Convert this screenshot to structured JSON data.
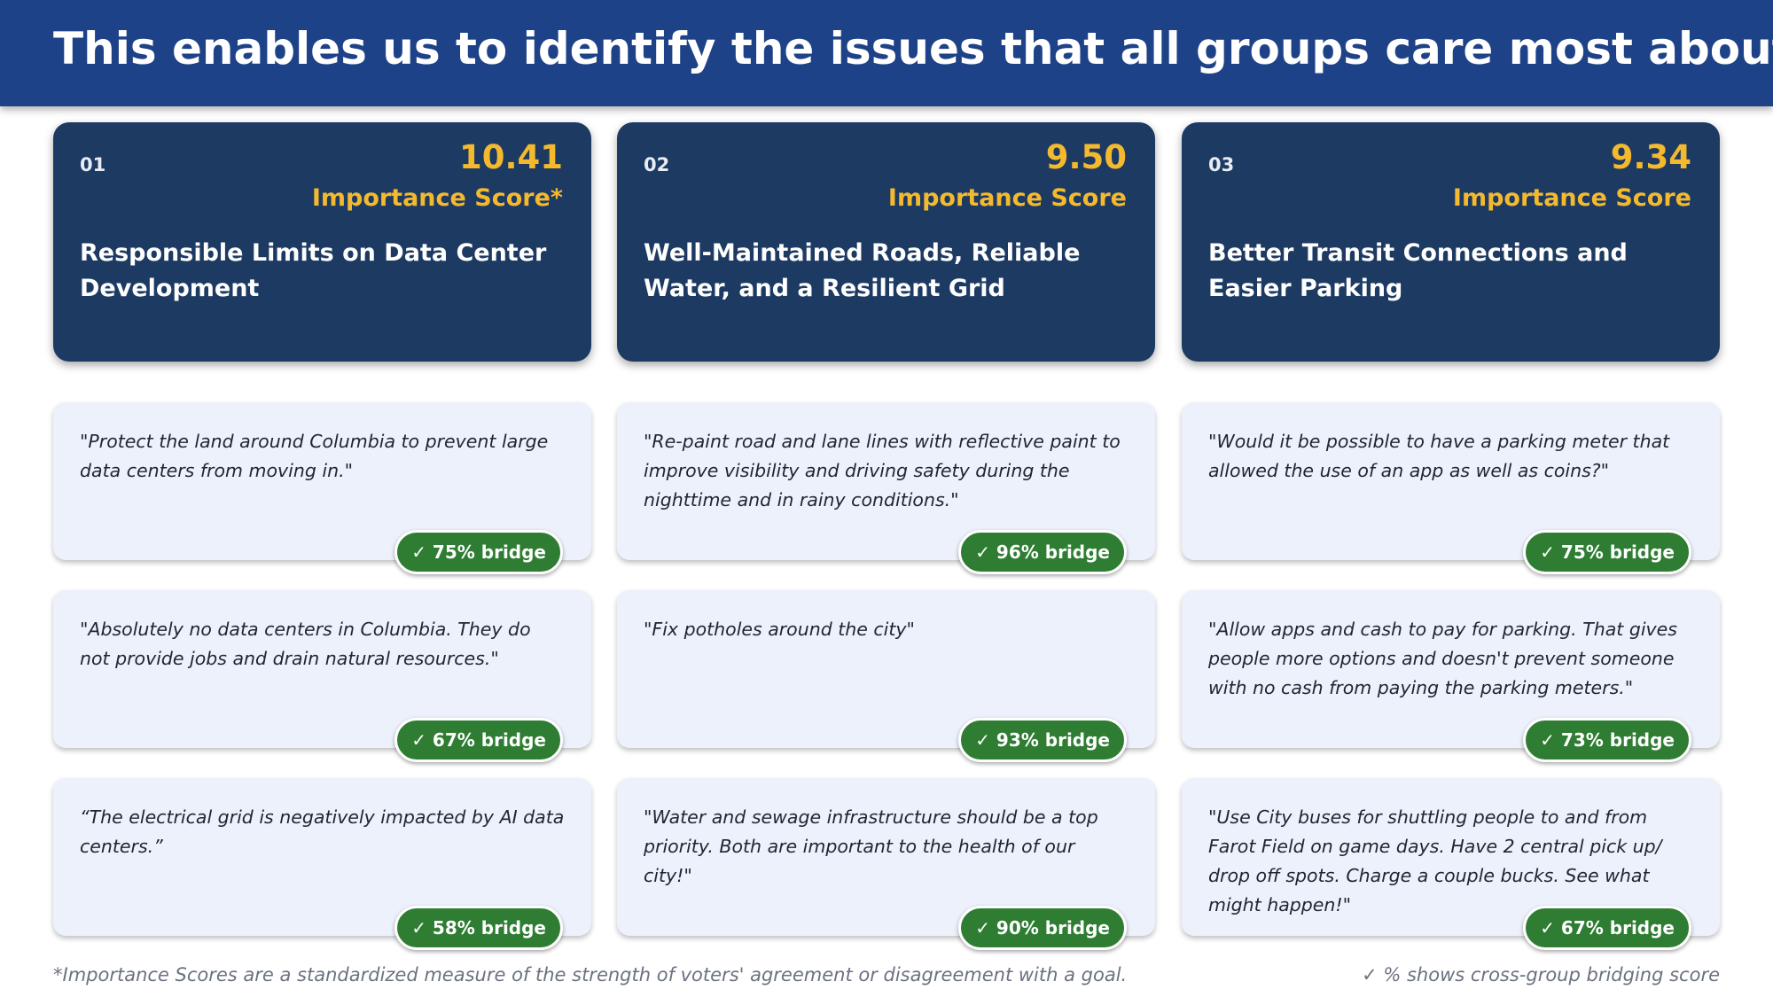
{
  "header": {
    "title": "This enables us to identify the issues that all groups care most about"
  },
  "columns": [
    {
      "number": "01",
      "score": "10.41",
      "score_label": "Importance Score*",
      "title": "Responsible Limits on Data Center Development",
      "quotes": [
        {
          "text": "\"Protect the land around Columbia to prevent large data centers from moving in.\"",
          "badge": "✓ 75% bridge"
        },
        {
          "text": "\"Absolutely no data centers in Columbia. They do not provide jobs and drain natural resources.\"",
          "badge": "✓ 67% bridge"
        },
        {
          "text": "“The electrical grid is negatively impacted by AI data centers.”",
          "badge": "✓ 58% bridge"
        }
      ]
    },
    {
      "number": "02",
      "score": "9.50",
      "score_label": "Importance Score",
      "title": "Well-Maintained Roads, Reliable Water, and a Resilient Grid",
      "quotes": [
        {
          "text": "\"Re-paint road and lane lines with reflective paint to improve visibility and driving safety during the nighttime and in rainy conditions.\"",
          "badge": "✓ 96% bridge"
        },
        {
          "text": "\"Fix potholes around the city\"",
          "badge": "✓ 93% bridge"
        },
        {
          "text": "\"Water and sewage infrastructure should be a top priority. Both are important to the health of our city!\"",
          "badge": "✓ 90% bridge"
        }
      ]
    },
    {
      "number": "03",
      "score": "9.34",
      "score_label": "Importance Score",
      "title": "Better Transit Connections and Easier Parking",
      "quotes": [
        {
          "text": "\"Would it be possible to have a parking meter that allowed the use of an app as well as coins?\"",
          "badge": "✓ 75% bridge"
        },
        {
          "text": "\"Allow apps and cash to pay for parking. That gives people more options and doesn't prevent someone with no cash from paying the parking meters.\"",
          "badge": "✓ 73% bridge"
        },
        {
          "text": "\"Use City buses for shuttling people to and from Farot Field on game days. Have 2 central pick up/ drop off spots. Charge a couple bucks. See what might happen!\"",
          "badge": "✓ 67% bridge"
        }
      ]
    }
  ],
  "footer": {
    "note": "*Importance Scores are a standardized measure of the strength of voters' agreement or disagreement with a goal.",
    "legend": "✓ % shows cross-group bridging score"
  }
}
